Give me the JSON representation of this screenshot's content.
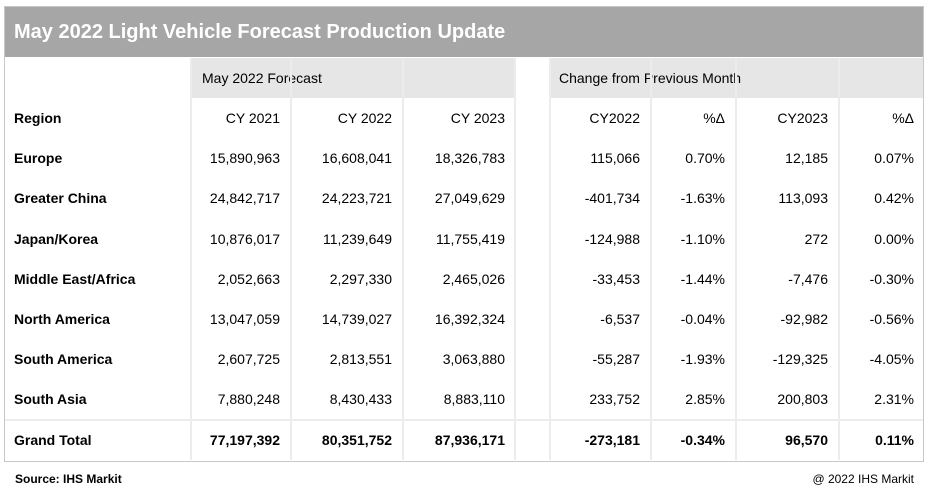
{
  "title": "May 2022 Light Vehicle Forecast Production Update",
  "group_headers": {
    "forecast": "May 2022 Forecast",
    "change": "Change from Previous Month"
  },
  "columns": [
    "Region",
    "CY 2021",
    "CY 2022",
    "CY 2023",
    "CY2022",
    "%Δ",
    "CY2023",
    "%Δ"
  ],
  "rows": [
    [
      "Europe",
      "15,890,963",
      "16,608,041",
      "18,326,783",
      "115,066",
      "0.70%",
      "12,185",
      "0.07%"
    ],
    [
      "Greater China",
      "24,842,717",
      "24,223,721",
      "27,049,629",
      "-401,734",
      "-1.63%",
      "113,093",
      "0.42%"
    ],
    [
      "Japan/Korea",
      "10,876,017",
      "11,239,649",
      "11,755,419",
      "-124,988",
      "-1.10%",
      "272",
      "0.00%"
    ],
    [
      "Middle East/Africa",
      "2,052,663",
      "2,297,330",
      "2,465,026",
      "-33,453",
      "-1.44%",
      "-7,476",
      "-0.30%"
    ],
    [
      "North America",
      "13,047,059",
      "14,739,027",
      "16,392,324",
      "-6,537",
      "-0.04%",
      "-92,982",
      "-0.56%"
    ],
    [
      "South America",
      "2,607,725",
      "2,813,551",
      "3,063,880",
      "-55,287",
      "-1.93%",
      "-129,325",
      "-4.05%"
    ],
    [
      "South Asia",
      "7,880,248",
      "8,430,433",
      "8,883,110",
      "233,752",
      "2.85%",
      "200,803",
      "2.31%"
    ]
  ],
  "total": [
    "Grand Total",
    "77,197,392",
    "80,351,752",
    "87,936,171",
    "-273,181",
    "-0.34%",
    "96,570",
    "0.11%"
  ],
  "footer": {
    "source": "Source: IHS Markit",
    "copyright": "@ 2022 IHS Markit"
  },
  "colors": {
    "title_bg": "#a6a6a6",
    "group_header_bg": "#e6e6e6",
    "gridline": "#ececec"
  },
  "chart_data": {
    "type": "table",
    "title": "May 2022 Light Vehicle Forecast Production Update",
    "column_groups": [
      {
        "name": "May 2022 Forecast",
        "columns": [
          "CY 2021",
          "CY 2022",
          "CY 2023"
        ]
      },
      {
        "name": "Change from Previous Month",
        "columns": [
          "CY2022",
          "%Δ",
          "CY2023",
          "%Δ"
        ]
      }
    ],
    "columns": [
      "Region",
      "CY 2021",
      "CY 2022",
      "CY 2023",
      "CY2022",
      "%Δ",
      "CY2023",
      "%Δ"
    ],
    "rows": [
      [
        "Europe",
        15890963,
        16608041,
        18326783,
        115066,
        0.7,
        12185,
        0.07
      ],
      [
        "Greater China",
        24842717,
        24223721,
        27049629,
        -401734,
        -1.63,
        113093,
        0.42
      ],
      [
        "Japan/Korea",
        10876017,
        11239649,
        11755419,
        -124988,
        -1.1,
        272,
        0.0
      ],
      [
        "Middle East/Africa",
        2052663,
        2297330,
        2465026,
        -33453,
        -1.44,
        -7476,
        -0.3
      ],
      [
        "North America",
        13047059,
        14739027,
        16392324,
        -6537,
        -0.04,
        -92982,
        -0.56
      ],
      [
        "South America",
        2607725,
        2813551,
        3063880,
        -55287,
        -1.93,
        -129325,
        -4.05
      ],
      [
        "South Asia",
        7880248,
        8430433,
        8883110,
        233752,
        2.85,
        200803,
        2.31
      ]
    ],
    "total": [
      "Grand Total",
      77197392,
      80351752,
      87936171,
      -273181,
      -0.34,
      96570,
      0.11
    ]
  }
}
